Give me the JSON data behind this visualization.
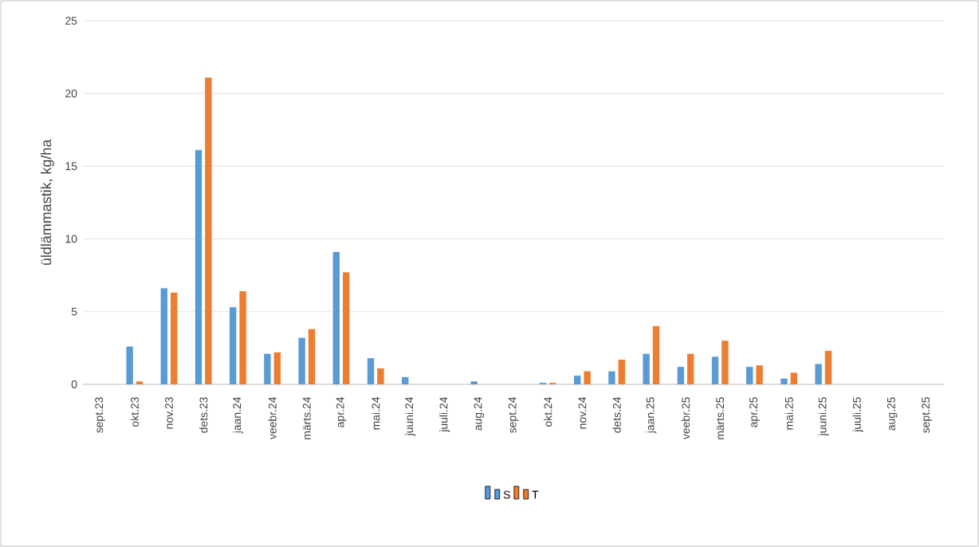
{
  "chart_data": {
    "type": "bar",
    "ylabel": "üldlämmastik, kg/ha",
    "categories": [
      "sept.23",
      "okt.23",
      "nov.23",
      "dets.23",
      "jaan.24",
      "veebr.24",
      "märts.24",
      "apr.24",
      "mai.24",
      "juuni.24",
      "juuli.24",
      "aug.24",
      "sept.24",
      "okt.24",
      "nov.24",
      "dets.24",
      "jaan.25",
      "veebr.25",
      "märts.25",
      "apr.25",
      "mai.25",
      "juuni.25",
      "juuli.25",
      "aug.25",
      "sept.25"
    ],
    "series": [
      {
        "name": "S",
        "color": "#5b9bd5",
        "values": [
          0,
          2.6,
          6.6,
          16.1,
          5.3,
          2.1,
          3.2,
          9.1,
          1.8,
          0.5,
          0,
          0.2,
          0,
          0.1,
          0.6,
          0.9,
          2.1,
          1.2,
          1.9,
          1.2,
          0.4,
          1.4,
          0,
          0,
          0
        ]
      },
      {
        "name": "T",
        "color": "#ed7d31",
        "values": [
          0,
          0.2,
          6.3,
          21.1,
          6.4,
          2.2,
          3.8,
          7.7,
          1.1,
          0,
          0,
          0,
          0,
          0.1,
          0.9,
          1.7,
          4.0,
          2.1,
          3.0,
          1.3,
          0.8,
          2.3,
          0,
          0,
          0
        ]
      }
    ],
    "ylim": [
      0,
      25
    ],
    "yticks": [
      0,
      5,
      10,
      15,
      20,
      25
    ],
    "grid": "y",
    "legend": "bottom"
  }
}
